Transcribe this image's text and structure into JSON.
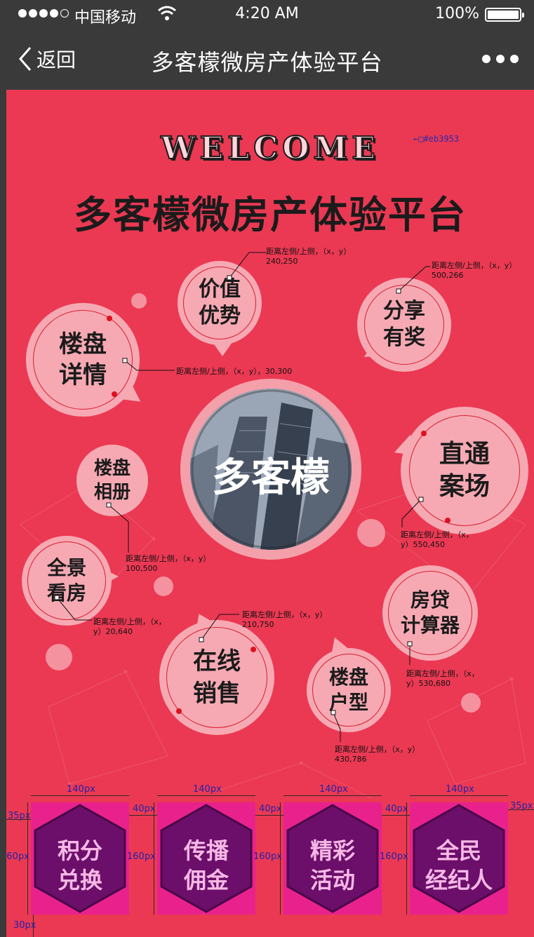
{
  "status_bar": {
    "carrier": "中国移动",
    "time": "4:20 AM",
    "battery": "100%"
  },
  "nav": {
    "back_label": "返回",
    "title": "多客檬微房产体验平台"
  },
  "header": {
    "welcome": "WELCOME",
    "title": "多客檬微房产体验平台",
    "color_note": "←□#eb3953"
  },
  "center": {
    "label": "多客檬"
  },
  "bubbles": [
    {
      "id": "jiazhi",
      "lines": [
        "价值",
        "优势"
      ]
    },
    {
      "id": "fenxiang",
      "lines": [
        "分享",
        "有奖"
      ]
    },
    {
      "id": "loupan-xiangqing",
      "lines": [
        "楼盘",
        "详情"
      ]
    },
    {
      "id": "loupan-xiangce",
      "lines": [
        "楼盘",
        "相册"
      ]
    },
    {
      "id": "zhitong",
      "lines": [
        "直通",
        "案场"
      ]
    },
    {
      "id": "quanjing",
      "lines": [
        "全景",
        "看房"
      ]
    },
    {
      "id": "fangdai",
      "lines": [
        "房贷",
        "计算器"
      ]
    },
    {
      "id": "zaixian",
      "lines": [
        "在线",
        "销售"
      ]
    },
    {
      "id": "huxing",
      "lines": [
        "楼盘",
        "户型"
      ]
    }
  ],
  "annotations": {
    "a1": [
      "距离左侧/上侧，（x，y）",
      "240,250"
    ],
    "a2": [
      "距离左侧/上侧，（x，y）",
      "500,266"
    ],
    "a3": [
      "距离左侧/上侧，（x，y），30,300"
    ],
    "a4": [
      "距离左侧/上侧，（x，",
      "y）550,450"
    ],
    "a5": [
      "距离左侧/上侧，（x，y）",
      "100,500"
    ],
    "a6": [
      "距离左侧/上侧，（x，",
      "y）20,640"
    ],
    "a7": [
      "距离左侧/上侧，（x，y）",
      "210,750"
    ],
    "a8": [
      "距离左侧/上侧，（x，",
      "y）530,680"
    ],
    "a9": [
      "距离左侧/上侧，（x，y）",
      "430,786"
    ]
  },
  "tiles": [
    {
      "lines": [
        "积分",
        "兑换"
      ]
    },
    {
      "lines": [
        "传播",
        "佣金"
      ]
    },
    {
      "lines": [
        "精彩",
        "活动"
      ]
    },
    {
      "lines": [
        "全民",
        "经纪人"
      ]
    }
  ],
  "dims": {
    "w140": "140px",
    "h160": "160px",
    "g40": "40px",
    "m35": "35px",
    "b30": "30px"
  },
  "colors": {
    "background": "#eb3953",
    "bubble": "#f6a9b3",
    "tile": "#e8218d",
    "hexagon": "#6b0f6a"
  }
}
